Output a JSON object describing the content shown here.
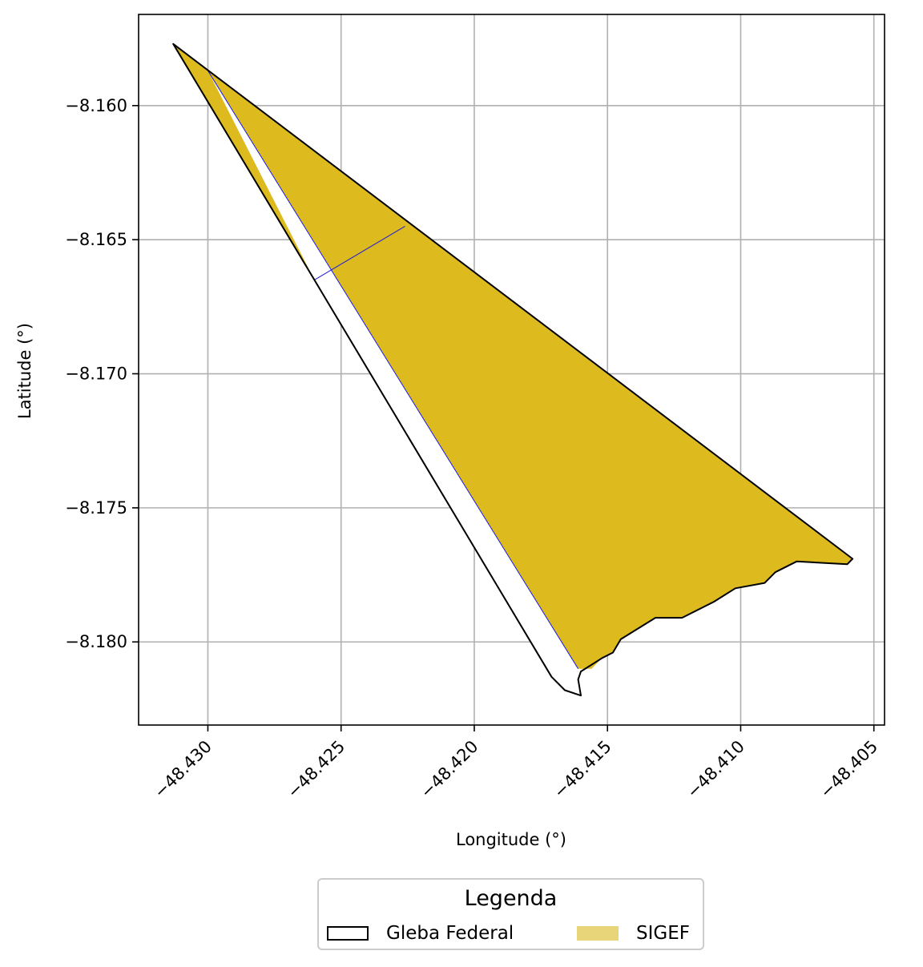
{
  "chart_data": {
    "type": "map",
    "xlabel": "Longitude (°)",
    "ylabel": "Latitude (°)",
    "xlim": [
      -48.4326,
      -48.4046
    ],
    "ylim": [
      -8.1831,
      -8.1566
    ],
    "xticks": [
      -48.43,
      -48.425,
      -48.42,
      -48.415,
      -48.41,
      -48.405
    ],
    "xtick_labels": [
      "−48.430",
      "−48.425",
      "−48.420",
      "−48.415",
      "−48.410",
      "−48.405"
    ],
    "yticks": [
      -8.16,
      -8.165,
      -8.17,
      -8.175,
      -8.18
    ],
    "ytick_labels": [
      "−8.160",
      "−8.165",
      "−8.170",
      "−8.175",
      "−8.180"
    ],
    "grid": true,
    "layers": {
      "sigef_color": "#ddbb1f",
      "gleba_edge": "#000000",
      "parcel_divider_color": "#1a1adc",
      "gleba_polygon": [
        [
          -48.4313,
          -8.1577
        ],
        [
          -48.4058,
          -8.1769
        ],
        [
          -48.406,
          -8.1771
        ],
        [
          -48.4079,
          -8.177
        ],
        [
          -48.4087,
          -8.1774
        ],
        [
          -48.4091,
          -8.1778
        ],
        [
          -48.4102,
          -8.178
        ],
        [
          -48.411,
          -8.1785
        ],
        [
          -48.4122,
          -8.1791
        ],
        [
          -48.4132,
          -8.1791
        ],
        [
          -48.4145,
          -8.1799
        ],
        [
          -48.4148,
          -8.1804
        ],
        [
          -48.4152,
          -8.1806
        ],
        [
          -48.416,
          -8.1811
        ],
        [
          -48.4161,
          -8.1814
        ],
        [
          -48.416,
          -8.182
        ],
        [
          -48.4166,
          -8.1818
        ],
        [
          -48.4171,
          -8.1813
        ],
        [
          -48.426,
          -8.1665
        ]
      ],
      "sigef_polygon": [
        [
          -48.4313,
          -8.1577
        ],
        [
          -48.4058,
          -8.1769
        ],
        [
          -48.406,
          -8.1771
        ],
        [
          -48.4079,
          -8.177
        ],
        [
          -48.4087,
          -8.1774
        ],
        [
          -48.4091,
          -8.1778
        ],
        [
          -48.4102,
          -8.178
        ],
        [
          -48.411,
          -8.1785
        ],
        [
          -48.4122,
          -8.1791
        ],
        [
          -48.4132,
          -8.1791
        ],
        [
          -48.4145,
          -8.1799
        ],
        [
          -48.4148,
          -8.1804
        ],
        [
          -48.4152,
          -8.1806
        ],
        [
          -48.4156,
          -8.181
        ],
        [
          -48.4161,
          -8.181
        ],
        [
          -48.43,
          -8.1587
        ],
        [
          -48.426,
          -8.1665
        ]
      ],
      "sigef_dividers": [
        [
          [
            -48.43,
            -8.1587
          ],
          [
            -48.4161,
            -8.181
          ]
        ],
        [
          [
            -48.426,
            -8.1665
          ],
          [
            -48.4226,
            -8.1645
          ]
        ]
      ]
    }
  },
  "legend": {
    "title": "Legenda",
    "items": [
      {
        "label": "Gleba Federal",
        "fill": "#ffffff",
        "edge": "#000000"
      },
      {
        "label": "SIGEF",
        "fill": "#e8d57a",
        "edge": "#e8d57a"
      }
    ]
  }
}
